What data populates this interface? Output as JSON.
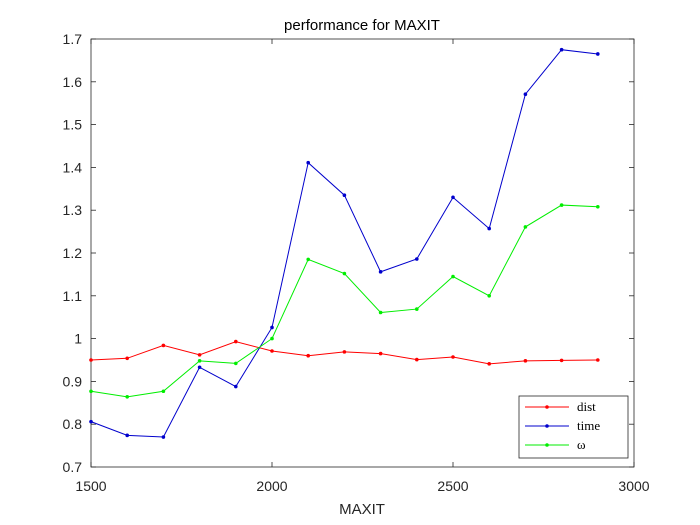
{
  "chart_data": {
    "type": "line",
    "title": "performance for MAXIT",
    "xlabel": "MAXIT",
    "ylabel": "",
    "xlim": [
      1500,
      3000
    ],
    "ylim": [
      0.7,
      1.7
    ],
    "x_ticks": [
      "1500",
      "2000",
      "2500",
      "3000"
    ],
    "y_ticks": [
      "0.7",
      "0.8",
      "0.9",
      "1",
      "1.1",
      "1.2",
      "1.3",
      "1.4",
      "1.5",
      "1.6",
      "1.7"
    ],
    "legend_position": "bottom-right",
    "x": [
      1500,
      1600,
      1700,
      1800,
      1900,
      2000,
      2100,
      2200,
      2300,
      2400,
      2500,
      2600,
      2700,
      2800,
      2900
    ],
    "series": [
      {
        "name": "dist",
        "color": "#ff0000",
        "values": [
          0.95,
          0.954,
          0.984,
          0.962,
          0.993,
          0.971,
          0.96,
          0.969,
          0.965,
          0.951,
          0.957,
          0.941,
          0.948,
          0.949,
          0.95
        ]
      },
      {
        "name": "time",
        "color": "#0000cc",
        "values": [
          0.806,
          0.774,
          0.77,
          0.933,
          0.888,
          1.026,
          1.411,
          1.335,
          1.156,
          1.186,
          1.33,
          1.257,
          1.571,
          1.675,
          1.665
        ]
      },
      {
        "name": "ω",
        "color": "#00ee00",
        "values": [
          0.877,
          0.864,
          0.877,
          0.948,
          0.942,
          1.0,
          1.185,
          1.152,
          1.061,
          1.069,
          1.145,
          1.1,
          1.261,
          1.312,
          1.308
        ]
      }
    ]
  }
}
